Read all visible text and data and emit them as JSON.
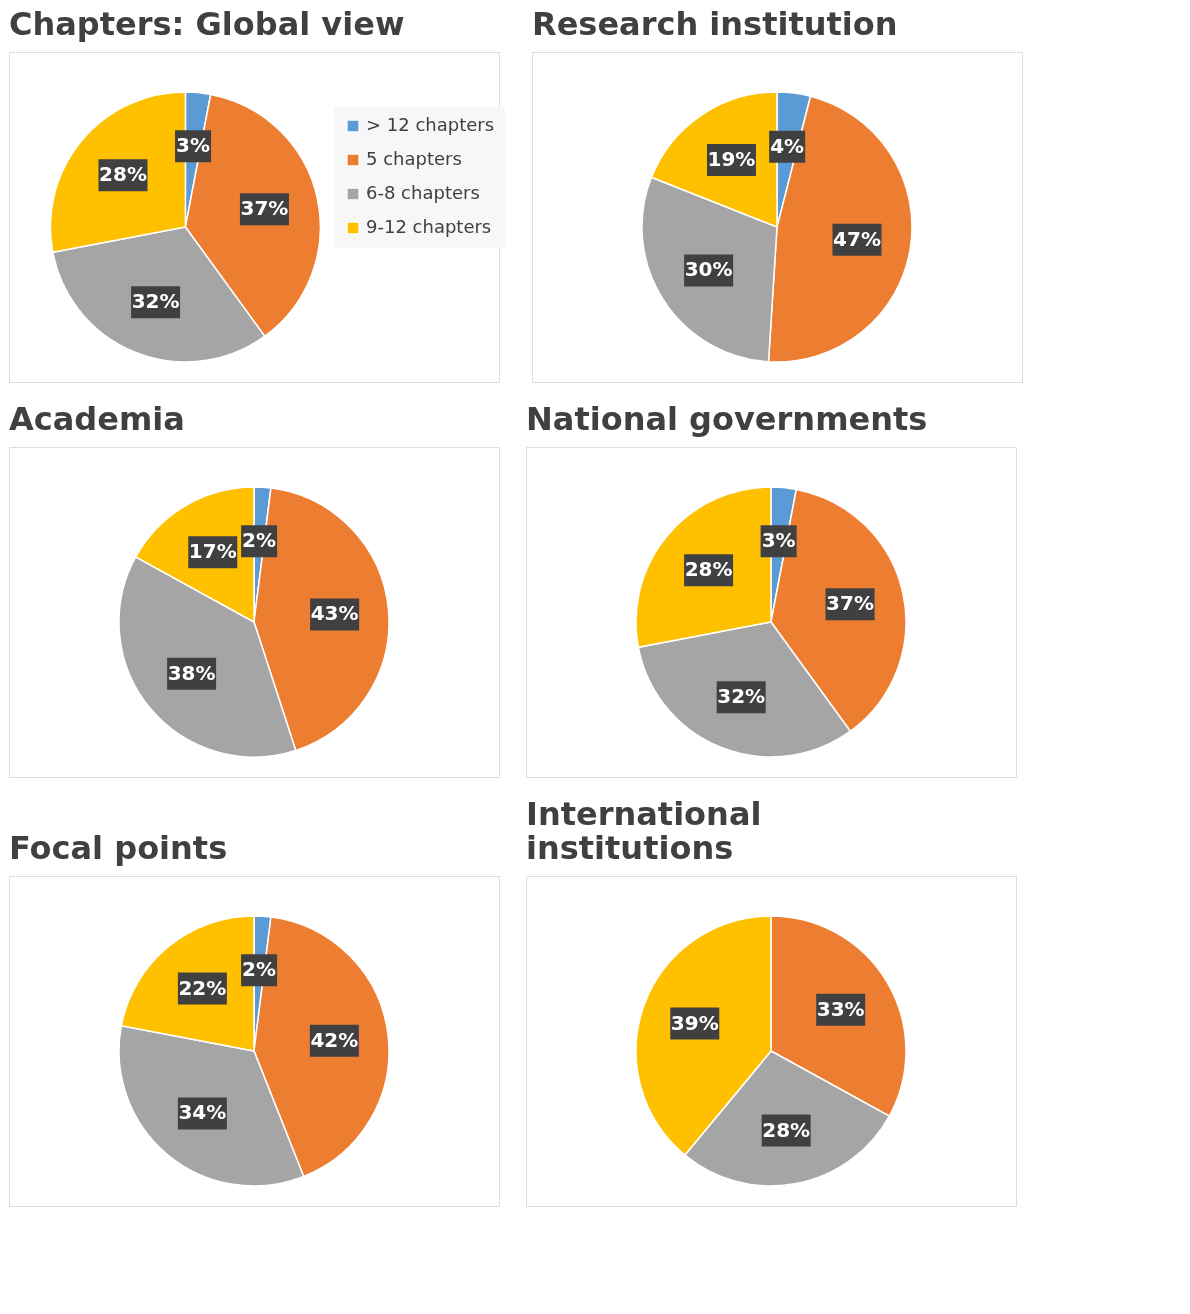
{
  "chart_data": [
    {
      "type": "pie",
      "title": "Chapters: Global view",
      "categories": [
        "> 12 chapters",
        "5 chapters",
        "6-8 chapters",
        "9-12 chapters"
      ],
      "values": [
        3,
        37,
        32,
        28
      ],
      "value_labels": [
        "3%",
        "37%",
        "32%",
        "28%"
      ],
      "colors": [
        "#5b9bd5",
        "#ed7d31",
        "#a5a5a5",
        "#ffc000"
      ],
      "legend": "right"
    },
    {
      "type": "pie",
      "title": "Research institution",
      "values": [
        4,
        47,
        30,
        19
      ],
      "value_labels": [
        "4%",
        "47%",
        "30%",
        "19%"
      ],
      "colors": [
        "#5b9bd5",
        "#ed7d31",
        "#a5a5a5",
        "#ffc000"
      ]
    },
    {
      "type": "pie",
      "title": "Academia",
      "values": [
        2,
        43,
        38,
        17
      ],
      "value_labels": [
        "2%",
        "43%",
        "38%",
        "17%"
      ],
      "colors": [
        "#5b9bd5",
        "#ed7d31",
        "#a5a5a5",
        "#ffc000"
      ]
    },
    {
      "type": "pie",
      "title": "National governments",
      "values": [
        3,
        37,
        32,
        28
      ],
      "value_labels": [
        "3%",
        "37%",
        "32%",
        "28%"
      ],
      "colors": [
        "#5b9bd5",
        "#ed7d31",
        "#a5a5a5",
        "#ffc000"
      ]
    },
    {
      "type": "pie",
      "title": "Focal points",
      "values": [
        2,
        42,
        34,
        22
      ],
      "value_labels": [
        "2%",
        "42%",
        "34%",
        "22%"
      ],
      "colors": [
        "#5b9bd5",
        "#ed7d31",
        "#a5a5a5",
        "#ffc000"
      ]
    },
    {
      "type": "pie",
      "title": "International institutions",
      "values": [
        33,
        28,
        39
      ],
      "value_labels": [
        "33%",
        "28%",
        "39%"
      ],
      "colors": [
        "#ed7d31",
        "#a5a5a5",
        "#ffc000"
      ]
    }
  ]
}
